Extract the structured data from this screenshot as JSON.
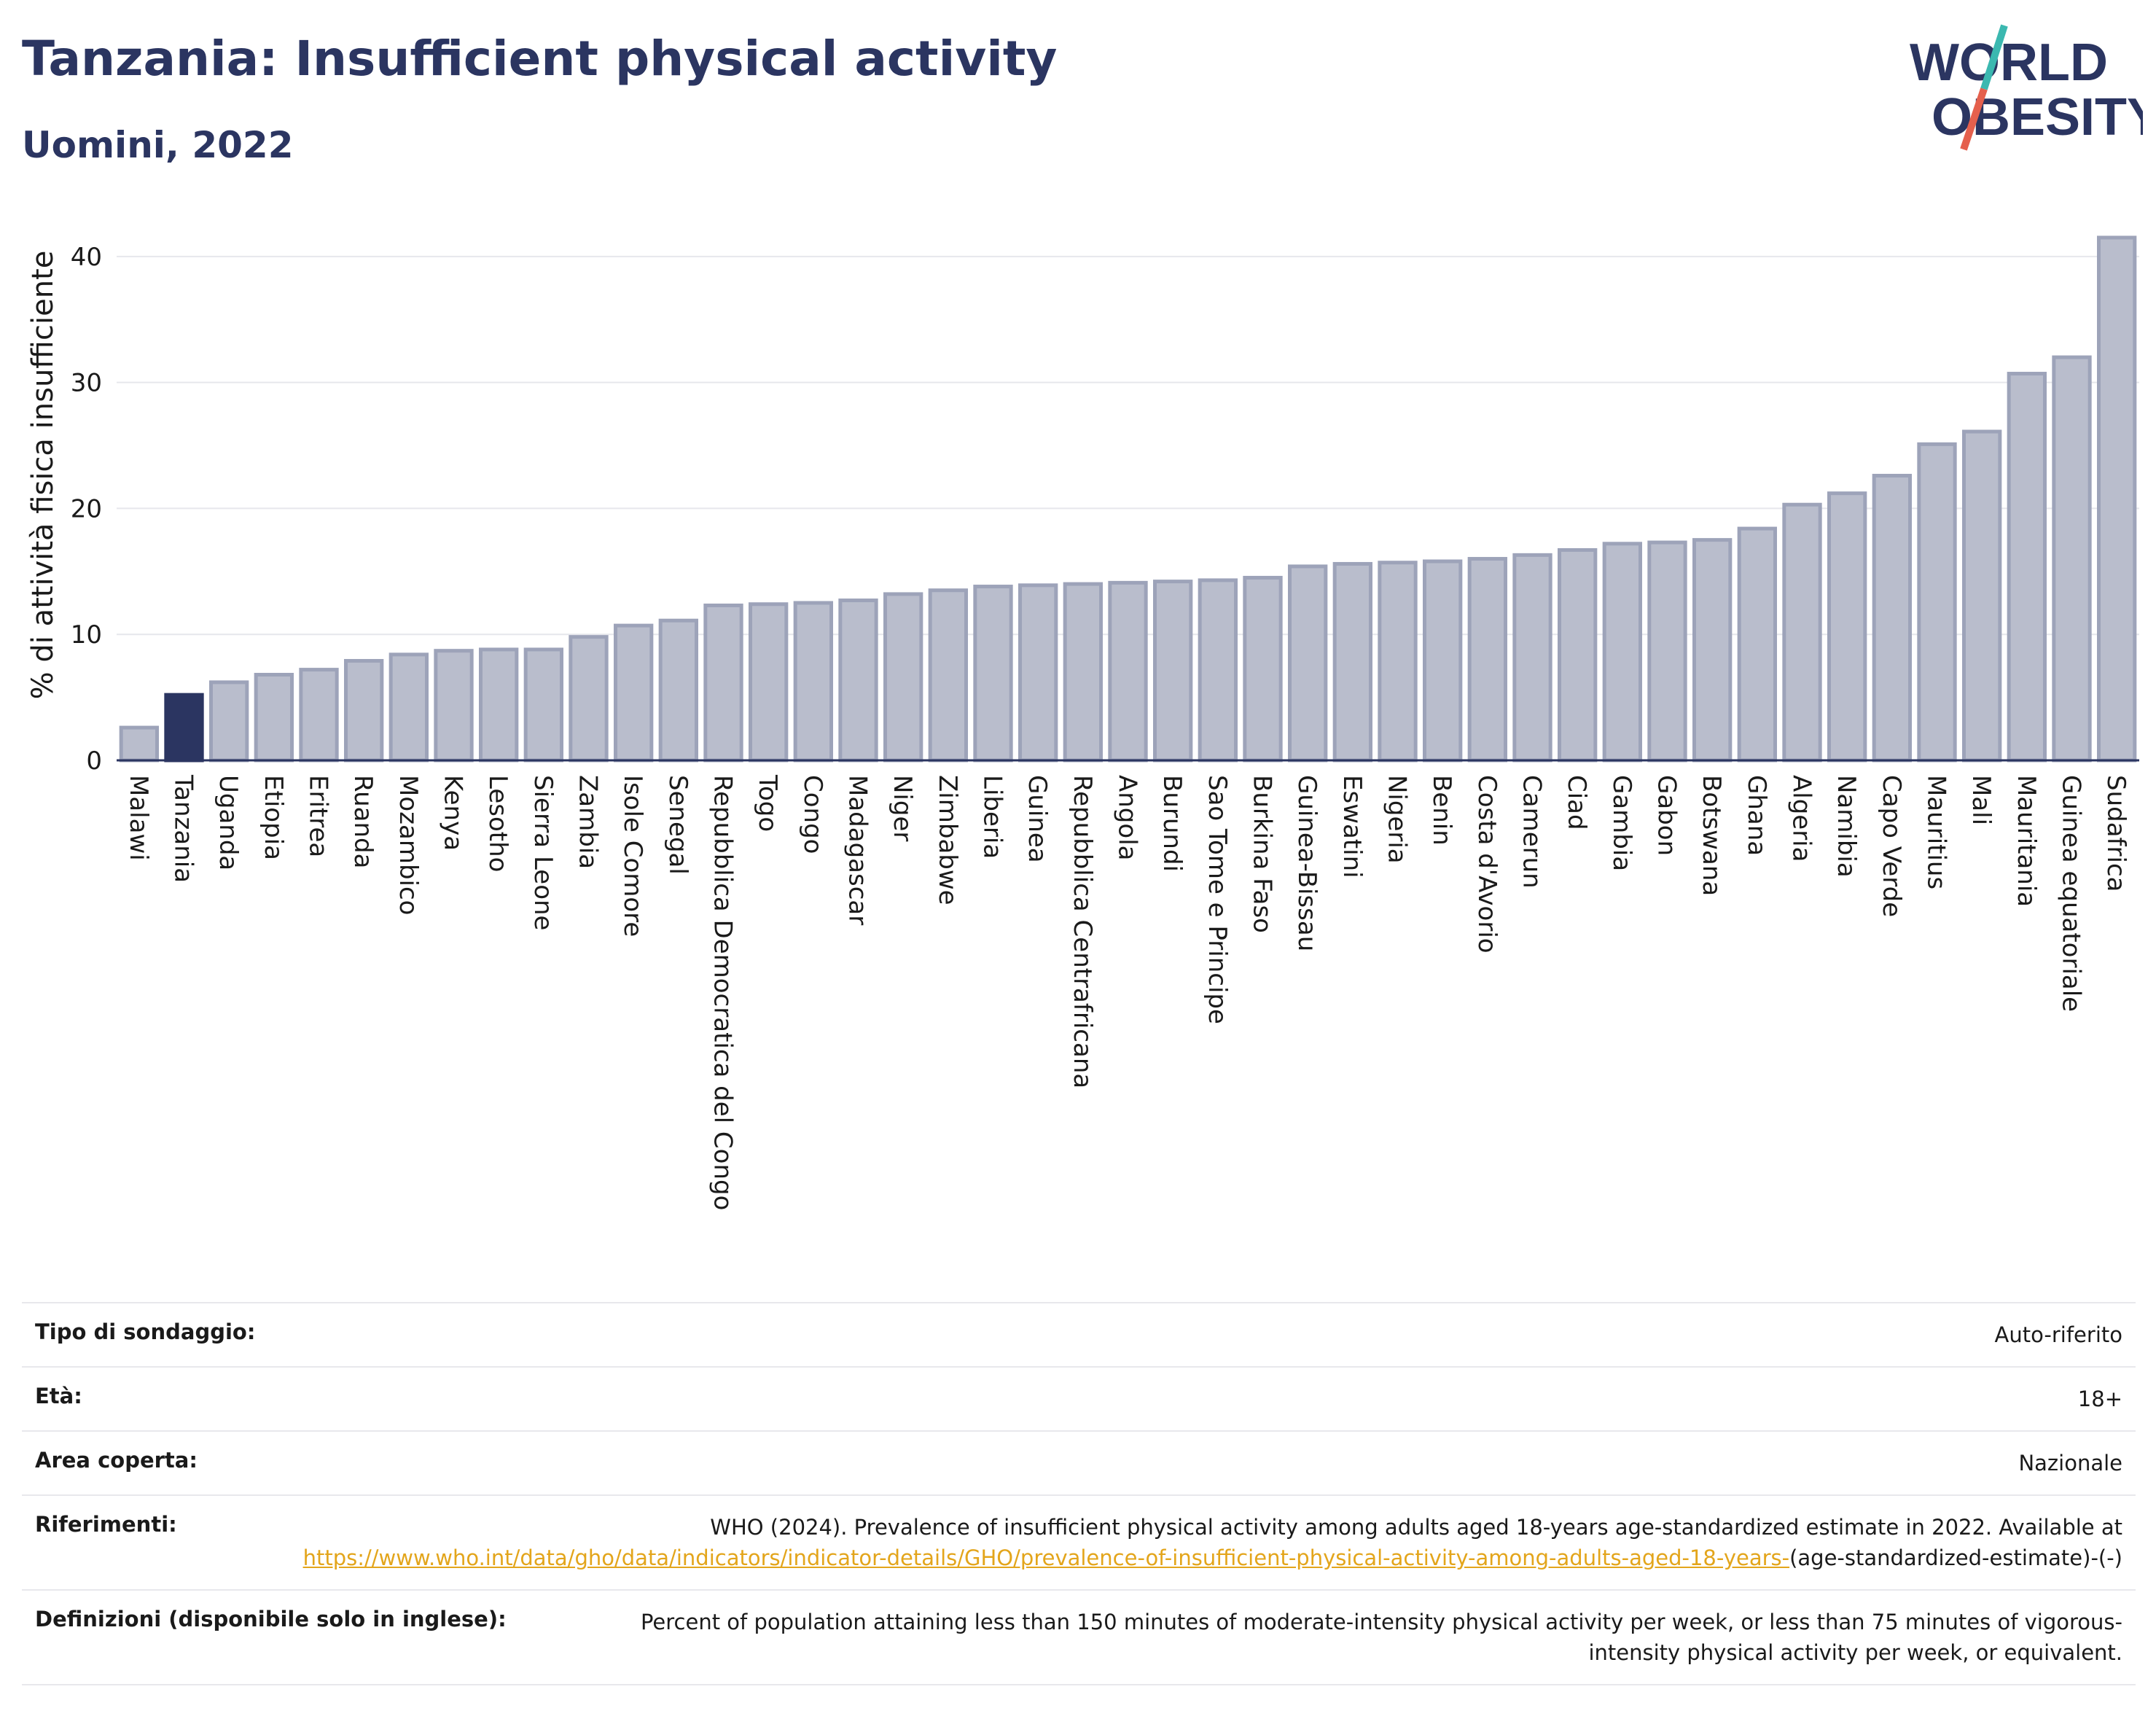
{
  "header": {
    "title": "Tanzania: Insufficient physical activity",
    "subtitle": "Uomini, 2022"
  },
  "logo": {
    "line1": "WORLD",
    "line2": "OBESITY"
  },
  "colors": {
    "highlight_bar": "#2b3561",
    "bar": "#b9bdcc",
    "bar_border": "#9da3b9",
    "title": "#2b3561",
    "link": "#e3a51b",
    "logo_slash_top": "#3bb8b0",
    "logo_slash_bottom": "#e5604d"
  },
  "chart_data": {
    "type": "bar",
    "title": "Tanzania: Insufficient physical activity",
    "subtitle": "Uomini, 2022",
    "xlabel": "",
    "ylabel": "% di attività fisica insufficiente",
    "ylim": [
      0,
      43
    ],
    "yticks": [
      0,
      10,
      20,
      30,
      40
    ],
    "grid": true,
    "highlight": "Tanzania",
    "categories": [
      "Malawi",
      "Tanzania",
      "Uganda",
      "Etiopia",
      "Eritrea",
      "Ruanda",
      "Mozambico",
      "Kenya",
      "Lesotho",
      "Sierra Leone",
      "Zambia",
      "Isole Comore",
      "Senegal",
      "Repubblica Democratica del Congo",
      "Togo",
      "Congo",
      "Madagascar",
      "Niger",
      "Zimbabwe",
      "Liberia",
      "Guinea",
      "Repubblica Centrafricana",
      "Angola",
      "Burundi",
      "Sao Tome e Principe",
      "Burkina Faso",
      "Guinea-Bissau",
      "Eswatini",
      "Nigeria",
      "Benin",
      "Costa d'Avorio",
      "Camerun",
      "Ciad",
      "Gambia",
      "Gabon",
      "Botswana",
      "Ghana",
      "Algeria",
      "Namibia",
      "Capo Verde",
      "Mauritius",
      "Mali",
      "Mauritania",
      "Guinea equatoriale",
      "Sudafrica"
    ],
    "values": [
      2.6,
      5.2,
      6.2,
      6.8,
      7.2,
      7.9,
      8.4,
      8.7,
      8.8,
      8.8,
      9.8,
      10.7,
      11.1,
      12.3,
      12.4,
      12.5,
      12.7,
      13.2,
      13.5,
      13.8,
      13.9,
      14.0,
      14.1,
      14.2,
      14.3,
      14.5,
      15.4,
      15.6,
      15.7,
      15.8,
      16.0,
      16.3,
      16.7,
      17.2,
      17.3,
      17.5,
      18.4,
      20.3,
      21.2,
      22.6,
      25.1,
      26.1,
      30.7,
      32.0,
      41.5
    ]
  },
  "meta": {
    "rows": [
      {
        "label": "Tipo di sondaggio:",
        "value": "Auto-riferito"
      },
      {
        "label": "Età:",
        "value": "18+"
      },
      {
        "label": "Area coperta:",
        "value": "Nazionale"
      }
    ],
    "references_label": "Riferimenti:",
    "references_text": "WHO (2024). Prevalence of insufficient physical activity among adults aged 18-years age-standardized estimate in 2022. Available at",
    "references_link": "https://www.who.int/data/gho/data/indicators/indicator-details/GHO/prevalence-of-insufficient-physical-activity-among-adults-aged-18-years-",
    "references_suffix": "(age-standardized-estimate)-(-)",
    "definitions_label": "Definizioni (disponibile solo in inglese):",
    "definitions_text": "Percent of population attaining less than 150 minutes of moderate-intensity physical activity per week, or less than 75 minutes of vigorous-intensity physical activity per week, or equivalent."
  }
}
